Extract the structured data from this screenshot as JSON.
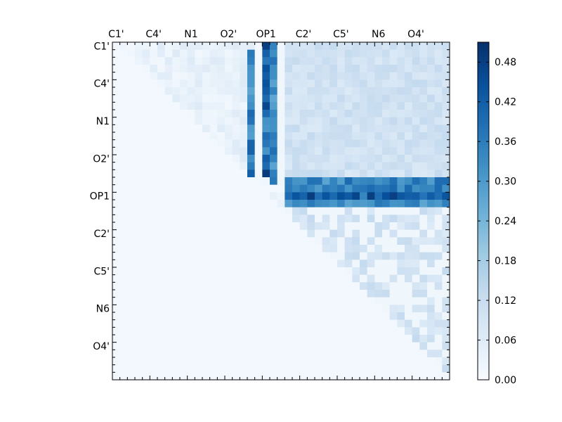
{
  "chart_data": {
    "type": "heatmap",
    "title": "",
    "xlabel": "",
    "ylabel": "",
    "grid": false,
    "colormap": "Blues",
    "n": 45,
    "x_tick_labels": [
      "C1'",
      "C4'",
      "N1",
      "O2'",
      "OP1",
      "C2'",
      "C5'",
      "N6",
      "O4'"
    ],
    "y_tick_labels": [
      "C1'",
      "C4'",
      "N1",
      "O2'",
      "OP1",
      "C2'",
      "C5'",
      "N6",
      "O4'"
    ],
    "tick_positions": [
      0,
      5,
      10,
      15,
      20,
      25,
      30,
      35,
      40
    ],
    "colorbar": {
      "min": 0.0,
      "max": 0.51,
      "tick_labels": [
        "0.00",
        "0.06",
        "0.12",
        "0.18",
        "0.24",
        "0.30",
        "0.36",
        "0.42",
        "0.48"
      ],
      "tick_values": [
        0.0,
        0.06,
        0.12,
        0.18,
        0.24,
        0.3,
        0.36,
        0.42,
        0.48
      ]
    },
    "strong_columns": [
      {
        "col": 18,
        "rows": "1-18",
        "value": 0.38
      },
      {
        "col": 20,
        "rows": "0-17",
        "value": 0.43
      },
      {
        "col": 21,
        "rows": "0-18",
        "value": 0.35
      }
    ],
    "strong_rows": [
      {
        "row": 18,
        "cols": "23-44",
        "value": 0.35
      },
      {
        "row": 20,
        "cols": "23-44",
        "value": 0.42
      },
      {
        "row": 21,
        "cols": "23-44",
        "value": 0.33
      }
    ],
    "background_value": 0.01,
    "upper_block_value": 0.1,
    "lower_right_block_value": 0.07
  },
  "colors": {
    "low": "#f7fbff",
    "high": "#08306b"
  }
}
